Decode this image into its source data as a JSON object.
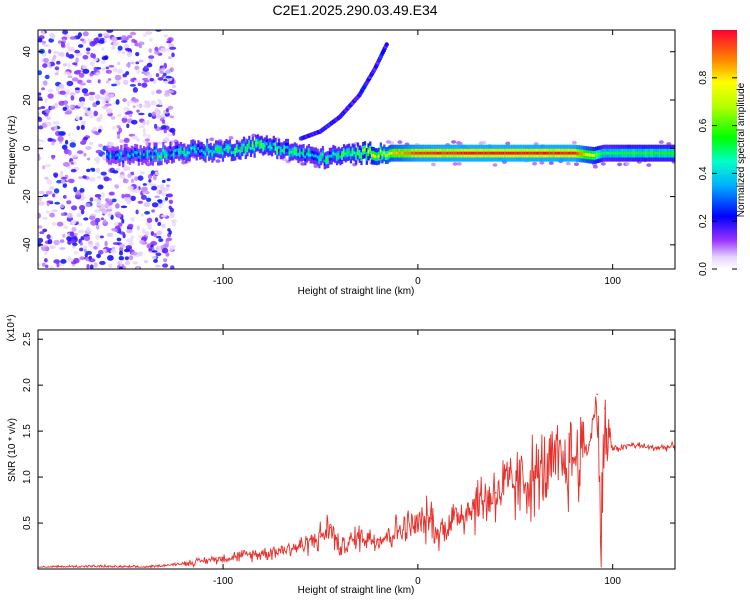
{
  "title": "C2E1.2025.290.03.49.E34",
  "chart_data": [
    {
      "type": "heatmap",
      "panel": "top",
      "xlabel": "Height of straight line (km)",
      "ylabel": "Frequency (Hz)",
      "xlim": [
        -195,
        132
      ],
      "ylim": [
        -50,
        49
      ],
      "xticks": [
        -100,
        0,
        100
      ],
      "xtick_labels": [
        "-100",
        "0",
        "100"
      ],
      "yticks": [
        40,
        20,
        0,
        -20,
        -40
      ],
      "ytick_labels": [
        "40",
        "20",
        "0",
        "-20",
        "-40"
      ],
      "colorbar": {
        "label": "Normalized spectral amplitude",
        "range": [
          0,
          1
        ],
        "ticks": [
          0.0,
          0.2,
          0.4,
          0.6,
          0.8
        ],
        "tick_labels": [
          "0.0",
          "0.2",
          "0.4",
          "0.6",
          "0.8"
        ]
      },
      "main_band": [
        {
          "x": -195,
          "f": -3,
          "a": 0.3
        },
        {
          "x": -150,
          "f": -3,
          "a": 0.35
        },
        {
          "x": -130,
          "f": -2,
          "a": 0.42
        },
        {
          "x": -115,
          "f": -1,
          "a": 0.45
        },
        {
          "x": -100,
          "f": -1,
          "a": 0.48
        },
        {
          "x": -85,
          "f": 1,
          "a": 0.52
        },
        {
          "x": -75,
          "f": 1,
          "a": 0.5
        },
        {
          "x": -62,
          "f": -2,
          "a": 0.47
        },
        {
          "x": -50,
          "f": -4,
          "a": 0.45
        },
        {
          "x": -40,
          "f": -3,
          "a": 0.5
        },
        {
          "x": -30,
          "f": -2,
          "a": 0.55
        },
        {
          "x": -20,
          "f": -2,
          "a": 0.75
        },
        {
          "x": 0,
          "f": -2,
          "a": 0.95
        },
        {
          "x": 20,
          "f": -2,
          "a": 0.98
        },
        {
          "x": 50,
          "f": -2,
          "a": 0.99
        },
        {
          "x": 80,
          "f": -2,
          "a": 0.97
        },
        {
          "x": 90,
          "f": -3,
          "a": 0.7
        },
        {
          "x": 95,
          "f": -2,
          "a": 0.5
        },
        {
          "x": 110,
          "f": -2,
          "a": 0.55
        },
        {
          "x": 132,
          "f": -2,
          "a": 0.55
        }
      ],
      "rising_arc": [
        {
          "x": -60,
          "f": 4
        },
        {
          "x": -50,
          "f": 7
        },
        {
          "x": -40,
          "f": 13
        },
        {
          "x": -30,
          "f": 22
        },
        {
          "x": -22,
          "f": 33
        },
        {
          "x": -16,
          "f": 43
        }
      ]
    },
    {
      "type": "line",
      "panel": "bottom",
      "xlabel": "Height of straight line (km)",
      "ylabel": "SNR (10 * v/v)",
      "y_multiplier": "(x10⁴)",
      "xlim": [
        -195,
        132
      ],
      "ylim": [
        0,
        2.6
      ],
      "xticks": [
        -100,
        0,
        100
      ],
      "xtick_labels": [
        "-100",
        "0",
        "100"
      ],
      "yticks": [
        0.5,
        1.0,
        1.5,
        2.0,
        2.5
      ],
      "ytick_labels": [
        "0.5",
        "1.0",
        "1.5",
        "2.0",
        "2.5"
      ],
      "series": [
        {
          "name": "SNR",
          "color": "#e8302a",
          "x": [
            -195,
            -170,
            -140,
            -120,
            -100,
            -80,
            -60,
            -50,
            -45,
            -40,
            -30,
            -20,
            -10,
            0,
            7,
            10,
            20,
            40,
            60,
            80,
            88,
            92,
            94,
            96,
            100,
            110,
            120,
            132
          ],
          "y": [
            0.02,
            0.03,
            0.02,
            0.06,
            0.12,
            0.17,
            0.25,
            0.35,
            0.45,
            0.22,
            0.36,
            0.32,
            0.42,
            0.48,
            0.55,
            0.38,
            0.58,
            0.83,
            1.0,
            1.2,
            1.35,
            1.9,
            0.35,
            1.75,
            1.3,
            1.35,
            1.32,
            1.33
          ]
        }
      ]
    }
  ]
}
